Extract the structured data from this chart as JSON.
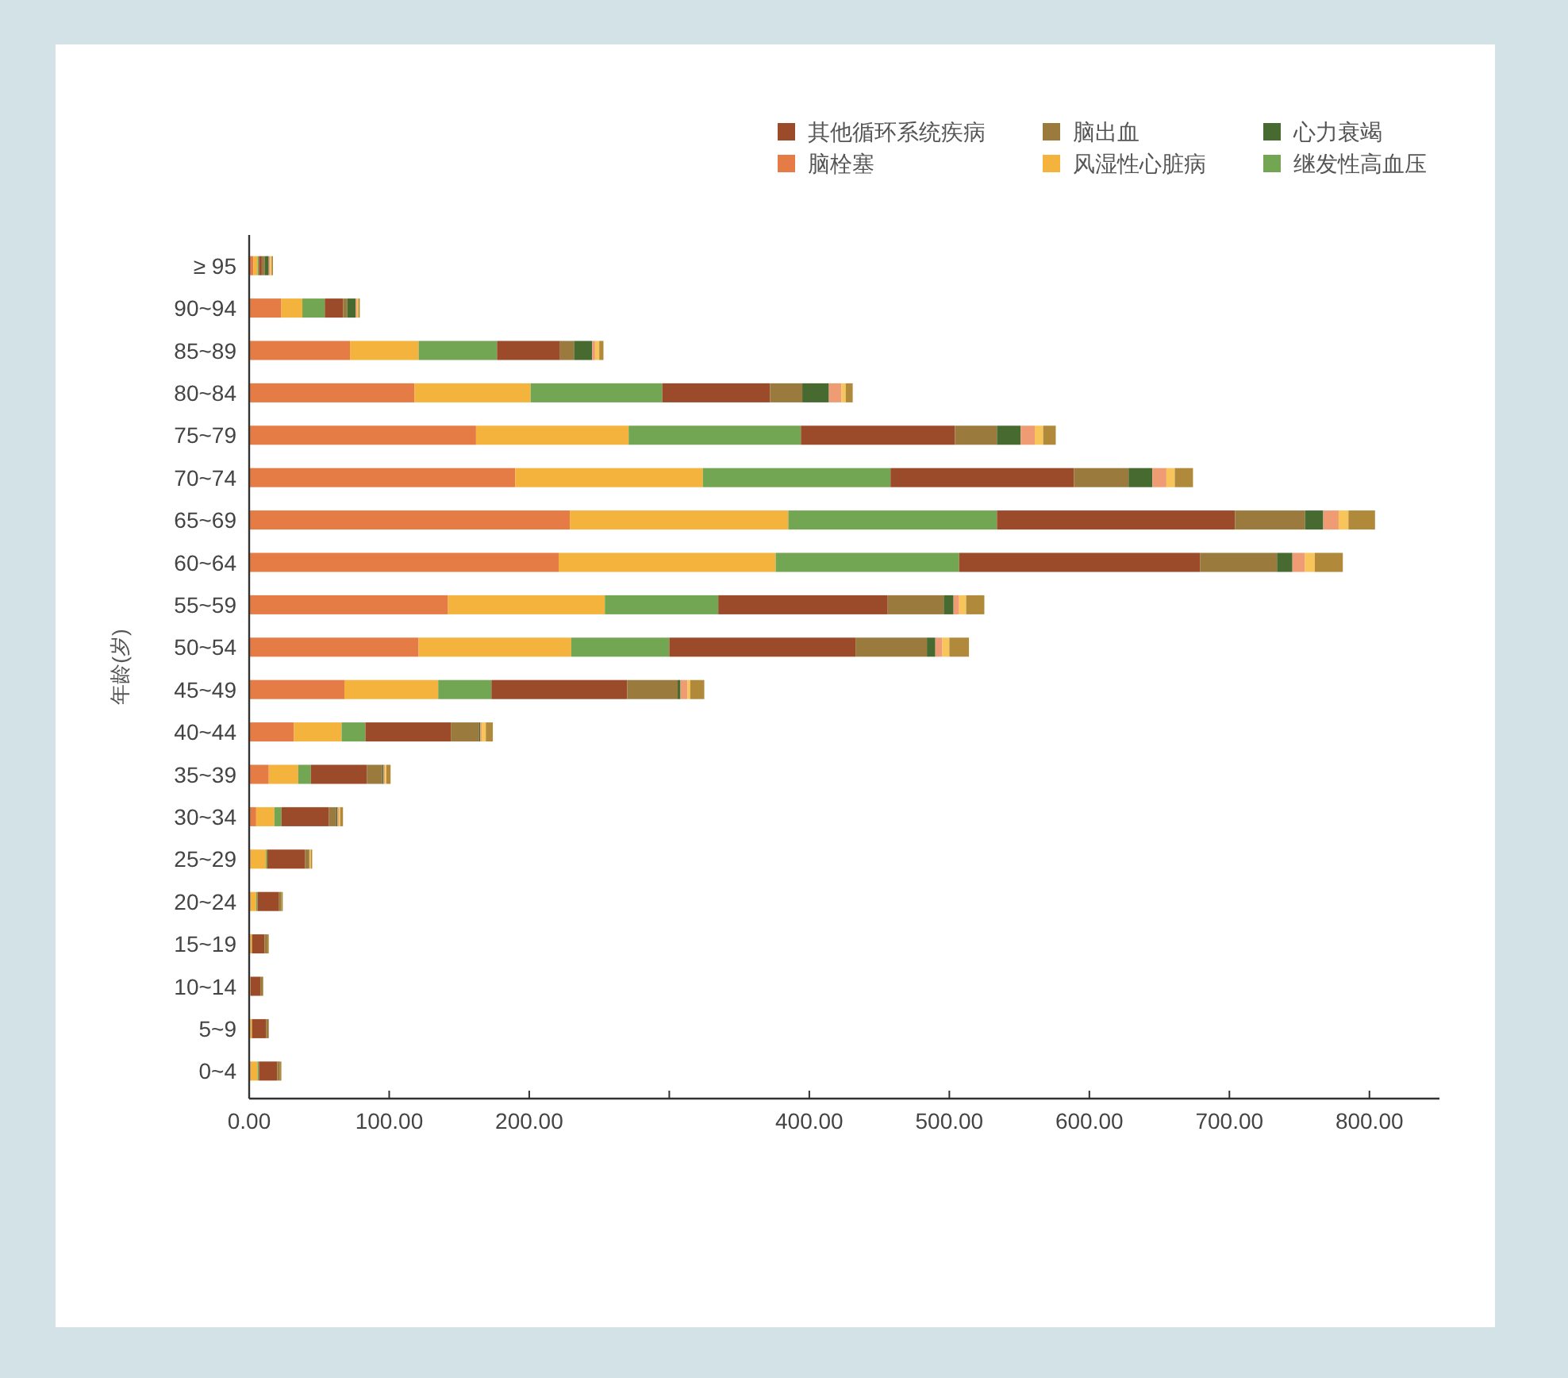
{
  "chart_data": {
    "type": "bar",
    "orientation": "horizontal",
    "stacked": true,
    "ylabel": "年龄(岁)",
    "categories": [
      "≥ 95",
      "90~94",
      "85~89",
      "80~84",
      "75~79",
      "70~74",
      "65~69",
      "60~64",
      "55~59",
      "50~54",
      "45~49",
      "40~44",
      "35~39",
      "30~34",
      "25~29",
      "20~24",
      "15~19",
      "10~14",
      "5~9",
      "0~4"
    ],
    "xlim": [
      0,
      850
    ],
    "xticks": [
      {
        "value": 0,
        "label": "0.00"
      },
      {
        "value": 100,
        "label": "100.00"
      },
      {
        "value": 200,
        "label": "200.00"
      },
      {
        "value": 300,
        "label": null
      },
      {
        "value": 400,
        "label": "400.00"
      },
      {
        "value": 500,
        "label": "500.00"
      },
      {
        "value": 600,
        "label": "600.00"
      },
      {
        "value": 700,
        "label": "700.00"
      },
      {
        "value": 800,
        "label": "800.00"
      }
    ],
    "legend": "top right",
    "series": [
      {
        "name": "脑栓塞",
        "color": "#e57c46",
        "values": [
          3,
          23,
          72,
          118,
          162,
          190,
          229,
          221,
          142,
          121,
          68,
          32,
          14,
          5,
          1,
          1,
          0,
          0,
          0,
          1
        ]
      },
      {
        "name": "风湿性心脏病",
        "color": "#f3b33d",
        "values": [
          3,
          15,
          49,
          83,
          109,
          134,
          156,
          155,
          112,
          109,
          67,
          34,
          21,
          13,
          11,
          4,
          2,
          1,
          2,
          5
        ]
      },
      {
        "name": "继发性高血压",
        "color": "#72a652",
        "values": [
          1,
          16,
          56,
          94,
          123,
          134,
          149,
          131,
          81,
          70,
          38,
          17,
          9,
          5,
          1,
          1,
          0,
          0,
          0,
          1
        ]
      },
      {
        "name": "其他循环系统疾病",
        "color": "#9b4a2a",
        "values": [
          2,
          13,
          45,
          77,
          110,
          131,
          170,
          172,
          121,
          133,
          97,
          61,
          40,
          34,
          27,
          15,
          9,
          7,
          10,
          13
        ]
      },
      {
        "name": "脑出血",
        "color": "#9b7a3d",
        "values": [
          2,
          3,
          10,
          23,
          30,
          39,
          50,
          55,
          40,
          51,
          36,
          20,
          11,
          5,
          3,
          2,
          2,
          2,
          2,
          2
        ]
      },
      {
        "name": "心力衰竭",
        "color": "#476a31",
        "values": [
          3,
          6,
          13,
          19,
          17,
          17,
          13,
          11,
          7,
          6,
          2,
          1,
          1,
          1,
          0,
          0,
          0,
          0,
          0,
          0
        ]
      },
      {
        "color": "#ef9b73",
        "values": [
          1,
          1,
          2,
          9,
          10,
          10,
          11,
          9,
          4,
          5,
          5,
          1,
          1,
          1,
          0,
          0,
          0,
          0,
          0,
          0
        ]
      },
      {
        "color": "#f7c55a",
        "values": [
          1,
          1,
          3,
          3,
          6,
          6,
          7,
          7,
          5,
          5,
          2,
          3,
          1,
          1,
          1,
          0,
          0,
          0,
          0,
          0
        ]
      },
      {
        "color": "#b08a3a",
        "values": [
          1,
          1,
          3,
          5,
          9,
          13,
          19,
          20,
          13,
          14,
          10,
          5,
          3,
          2,
          1,
          1,
          1,
          0,
          0,
          1
        ]
      }
    ]
  }
}
